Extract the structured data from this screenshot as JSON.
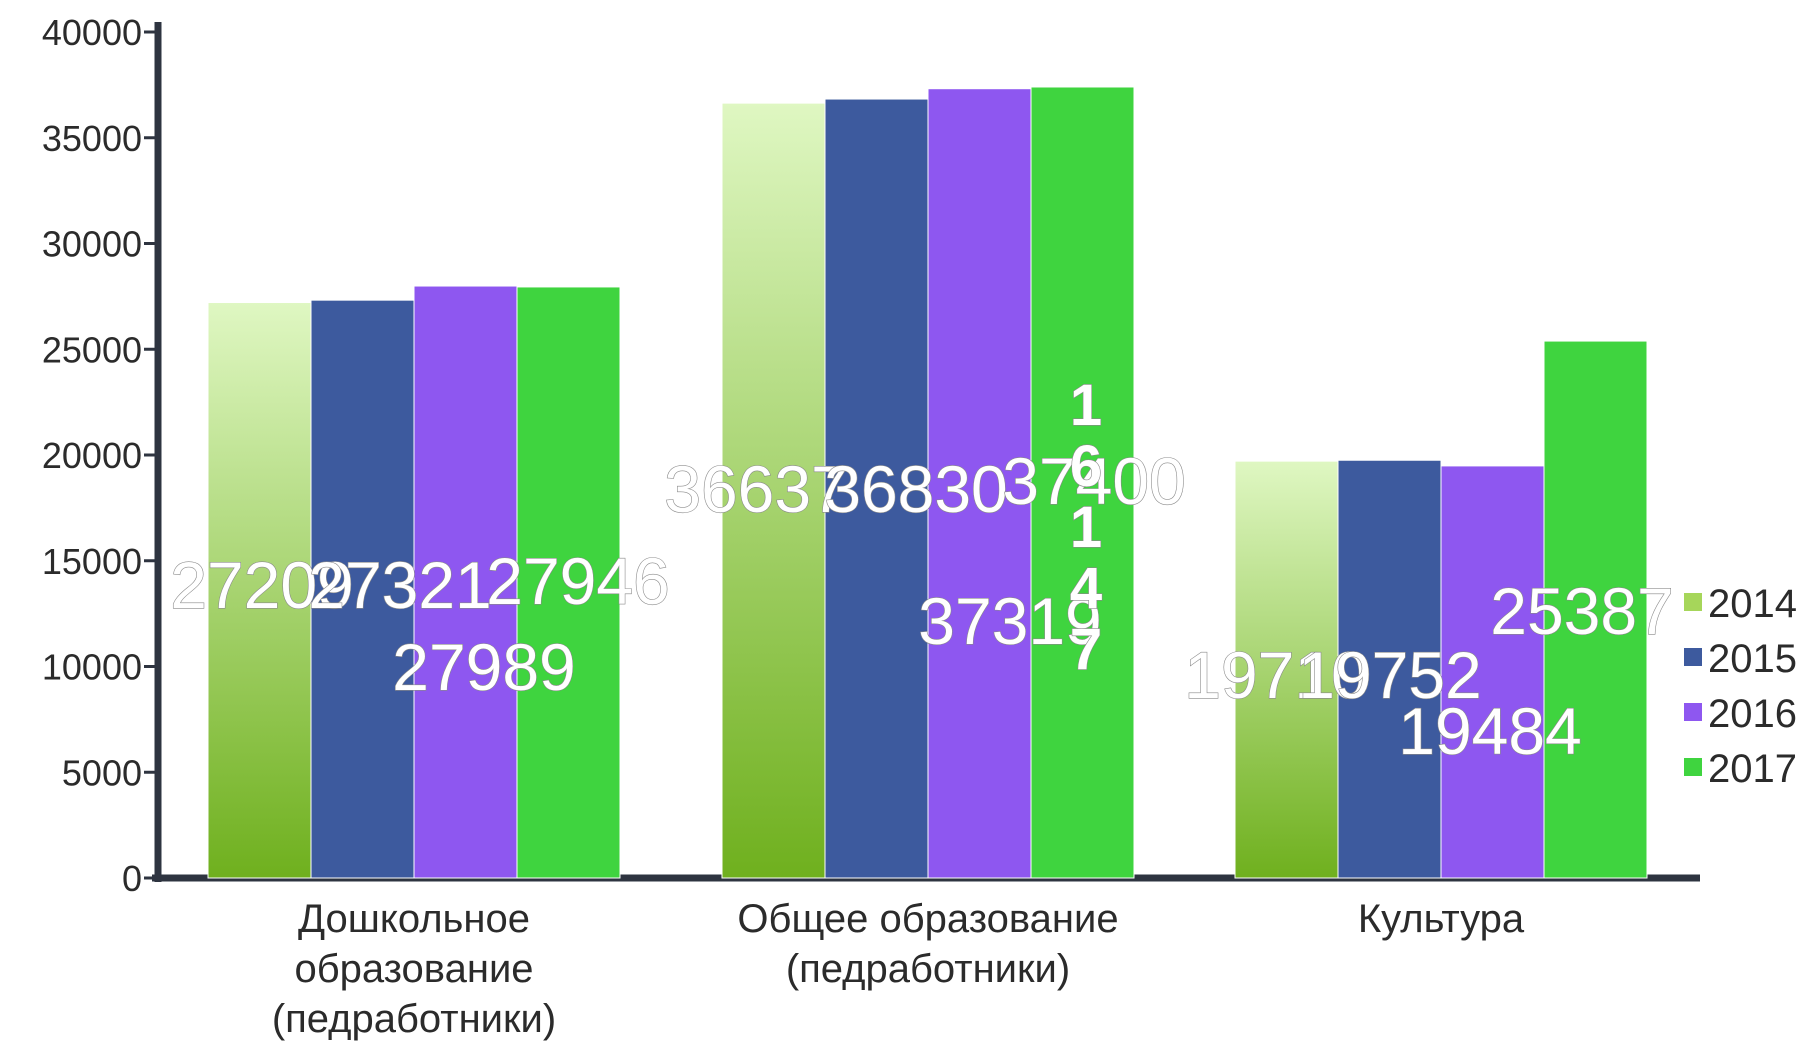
{
  "chart_data": {
    "type": "bar",
    "categories": [
      [
        "Дошкольное",
        "образование",
        "(педработники)"
      ],
      [
        "Общее образование",
        "(педработники)"
      ],
      [
        "Культура"
      ]
    ],
    "series": [
      {
        "name": "2014",
        "values": [
          27209,
          36637,
          19710
        ],
        "labels": [
          "27209",
          "36637",
          "19710"
        ]
      },
      {
        "name": "2015",
        "values": [
          27321,
          36830,
          19752
        ],
        "labels": [
          "27321",
          "36830",
          "19752"
        ]
      },
      {
        "name": "2016",
        "values": [
          27989,
          37319,
          19484
        ],
        "labels": [
          "27989",
          "37319",
          "19484"
        ]
      },
      {
        "name": "2017",
        "values": [
          27946,
          37400,
          25387
        ],
        "labels": [
          "27946",
          "37400",
          "25387"
        ]
      }
    ],
    "extra_label": "1\n6\n1\n4\n7",
    "yticks": [
      "0",
      "5000",
      "10000",
      "15000",
      "20000",
      "25000",
      "30000",
      "35000",
      "40000"
    ],
    "ylim": [
      0,
      40000
    ],
    "legend_position": "right",
    "colors": {
      "2014": "#a6d65a",
      "2015": "#3d5a9e",
      "2016": "#8e57f0",
      "2017": "#3fd43f"
    },
    "title": "",
    "xlabel": "",
    "ylabel": ""
  }
}
